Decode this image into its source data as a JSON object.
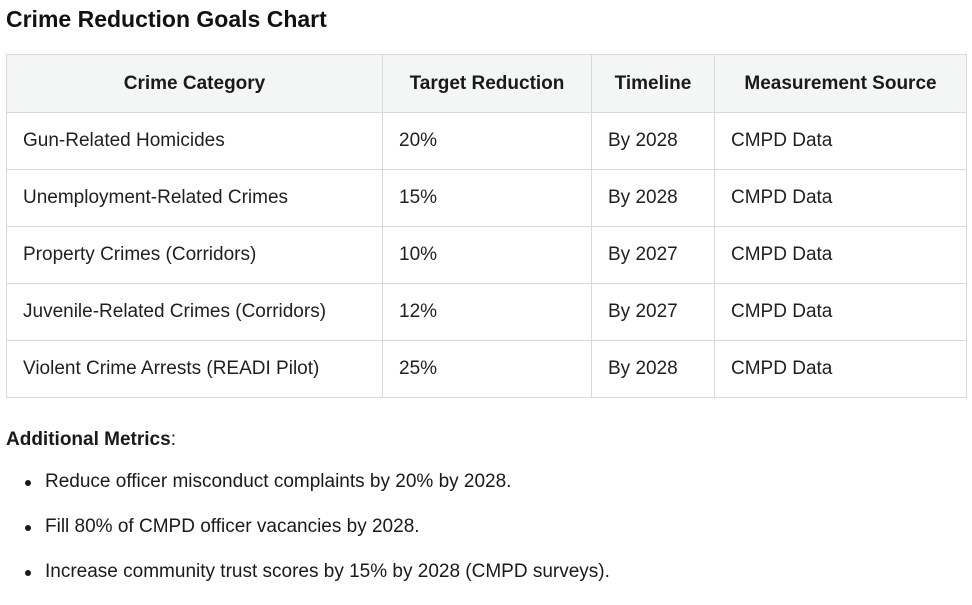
{
  "title": "Crime Reduction Goals Chart",
  "table": {
    "headers": [
      "Crime Category",
      "Target Reduction",
      "Timeline",
      "Measurement Source"
    ],
    "rows": [
      [
        "Gun-Related Homicides",
        "20%",
        "By 2028",
        "CMPD Data"
      ],
      [
        "Unemployment-Related Crimes",
        "15%",
        "By 2028",
        "CMPD Data"
      ],
      [
        "Property Crimes (Corridors)",
        "10%",
        "By 2027",
        "CMPD Data"
      ],
      [
        "Juvenile-Related Crimes (Corridors)",
        "12%",
        "By 2027",
        "CMPD Data"
      ],
      [
        "Violent Crime Arrests (READI Pilot)",
        "25%",
        "By 2028",
        "CMPD Data"
      ]
    ]
  },
  "metrics": {
    "heading": "Additional Metrics",
    "heading_suffix": ":",
    "items": [
      "Reduce officer misconduct complaints by 20% by 2028.",
      "Fill 80% of CMPD officer vacancies by 2028.",
      "Increase community trust scores by 15% by 2028 (CMPD surveys)."
    ]
  }
}
